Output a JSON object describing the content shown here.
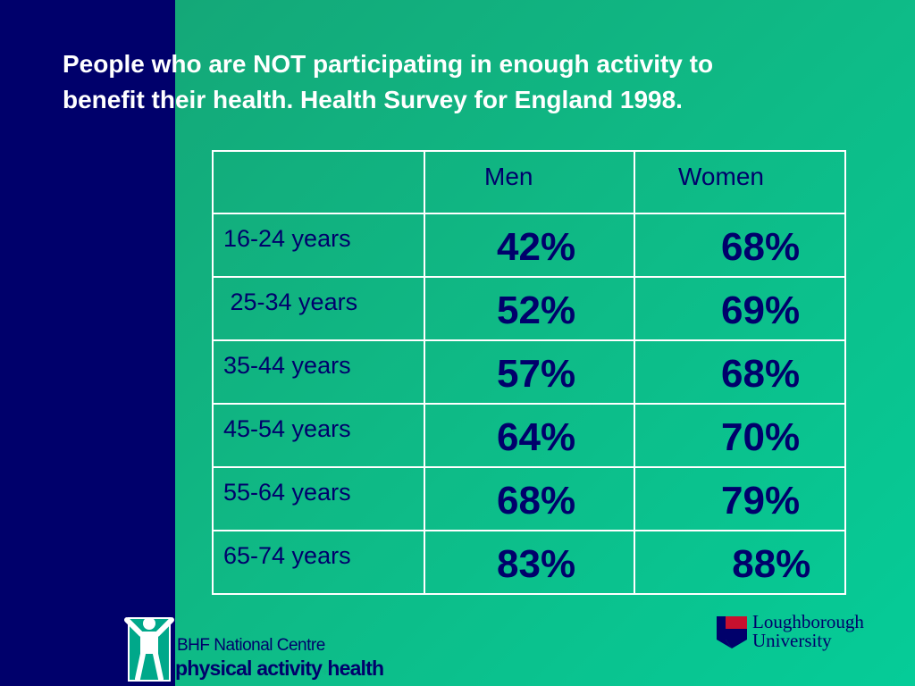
{
  "slide": {
    "title_line1": "People who are NOT participating in enough activity to",
    "title_line2": "benefit their health.  Health Survey for England 1998."
  },
  "table": {
    "headers": [
      "",
      "Men",
      "Women"
    ],
    "rows": [
      {
        "age": "16-24 years",
        "men": "42%",
        "women": "68%"
      },
      {
        "age": " 25-34 years",
        "men": "52%",
        "women": "69%"
      },
      {
        "age": "35-44 years",
        "men": "57%",
        "women": "68%"
      },
      {
        "age": "45-54 years",
        "men": "64%",
        "women": "70%"
      },
      {
        "age": "55-64 years",
        "men": "68%",
        "women": "79%"
      },
      {
        "age": "65-74 years",
        "men": "83%",
        "women": " 88%"
      }
    ]
  },
  "footer": {
    "bhf_line1": "BHF National Centre",
    "bhf_line2_a": "physical activity",
    "bhf_line2_sep": "+",
    "bhf_line2_b": "health",
    "university_line1": "Loughborough",
    "university_line2": "University"
  },
  "colors": {
    "navy": "#00006b",
    "teal": "#0fb985",
    "lu_red": "#c8102e"
  }
}
